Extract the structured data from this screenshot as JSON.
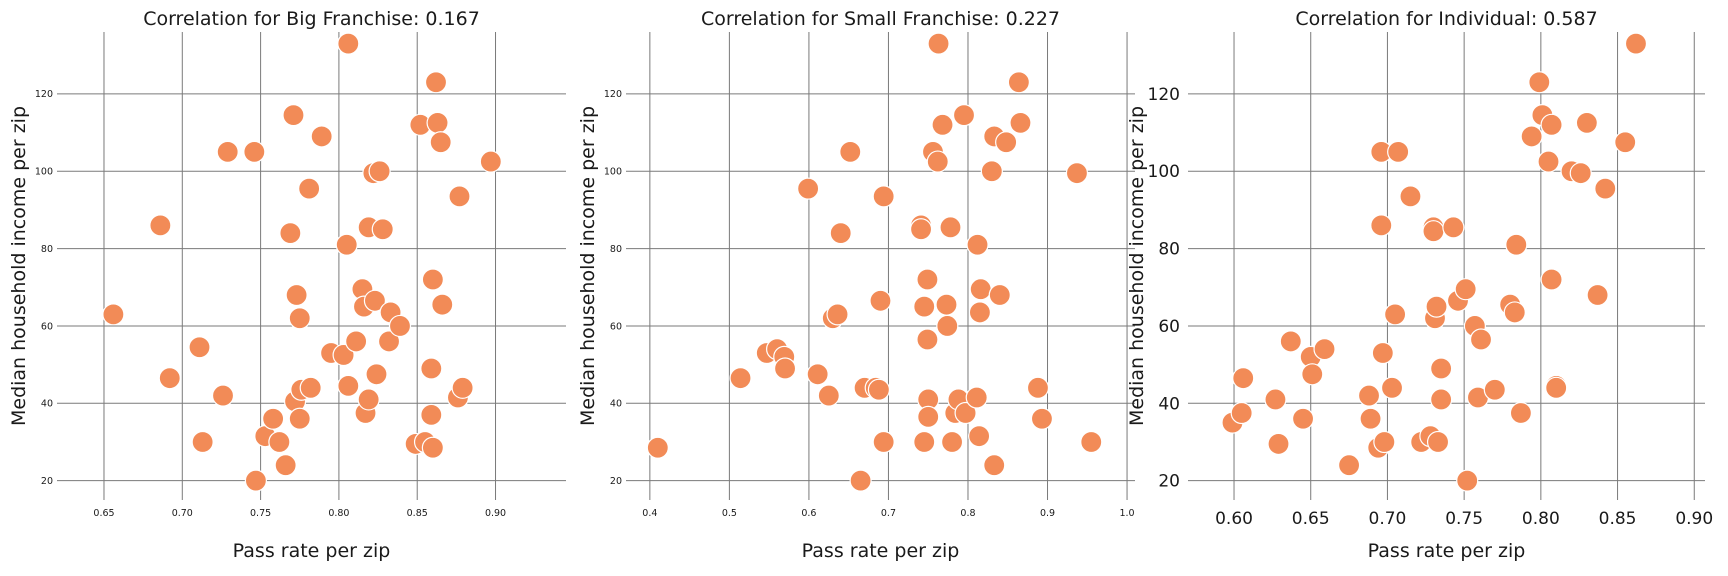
{
  "figure": {
    "panels": [
      {
        "title": "Correlation for Big Franchise: 0.167",
        "xlabel": "Pass rate per zip",
        "ylabel": "Median household income per zip"
      },
      {
        "title": "Correlation for Small Franchise: 0.227",
        "xlabel": "Pass rate per zip",
        "ylabel": "Median household income per zip"
      },
      {
        "title": "Correlation for Individual: 0.587",
        "xlabel": "Pass rate per zip",
        "ylabel": "Median household income per zip"
      }
    ]
  },
  "chart_data": [
    {
      "type": "scatter",
      "title": "Correlation for Big Franchise: 0.167",
      "xlabel": "Pass rate per zip",
      "ylabel": "Median household income per zip",
      "xlim": [
        0.62,
        0.945
      ],
      "ylim": [
        15,
        136
      ],
      "xticks": [
        0.65,
        0.7,
        0.75,
        0.8,
        0.85,
        0.9
      ],
      "xtick_labels": [
        "0.65",
        "0.70",
        "0.75",
        "0.80",
        "0.85",
        "0.90"
      ],
      "yticks": [
        20,
        40,
        60,
        80,
        100,
        120
      ],
      "ytick_labels": [
        "20",
        "40",
        "60",
        "80",
        "100",
        "120"
      ],
      "grid": true,
      "color": "#f28b57",
      "points": [
        [
          0.656,
          63
        ],
        [
          0.686,
          86
        ],
        [
          0.692,
          46.5
        ],
        [
          0.711,
          54.5
        ],
        [
          0.713,
          30
        ],
        [
          0.726,
          42
        ],
        [
          0.729,
          105
        ],
        [
          0.746,
          105
        ],
        [
          0.747,
          20
        ],
        [
          0.753,
          31.5
        ],
        [
          0.758,
          36
        ],
        [
          0.762,
          30
        ],
        [
          0.766,
          24
        ],
        [
          0.769,
          84
        ],
        [
          0.771,
          114.5
        ],
        [
          0.772,
          40.5
        ],
        [
          0.773,
          68
        ],
        [
          0.775,
          36
        ],
        [
          0.775,
          62
        ],
        [
          0.776,
          43.5
        ],
        [
          0.781,
          95.5
        ],
        [
          0.782,
          44
        ],
        [
          0.789,
          109
        ],
        [
          0.795,
          53
        ],
        [
          0.803,
          52.5
        ],
        [
          0.805,
          81
        ],
        [
          0.806,
          133
        ],
        [
          0.806,
          44.5
        ],
        [
          0.811,
          56
        ],
        [
          0.815,
          69.5
        ],
        [
          0.816,
          65
        ],
        [
          0.817,
          37.5
        ],
        [
          0.819,
          85.5
        ],
        [
          0.819,
          41
        ],
        [
          0.822,
          99.5
        ],
        [
          0.823,
          66.5
        ],
        [
          0.824,
          47.5
        ],
        [
          0.826,
          100
        ],
        [
          0.828,
          85
        ],
        [
          0.832,
          56
        ],
        [
          0.833,
          63.5
        ],
        [
          0.839,
          60
        ],
        [
          0.849,
          29.5
        ],
        [
          0.852,
          112
        ],
        [
          0.855,
          30
        ],
        [
          0.859,
          49
        ],
        [
          0.859,
          37
        ],
        [
          0.86,
          72
        ],
        [
          0.86,
          28.5
        ],
        [
          0.862,
          123
        ],
        [
          0.863,
          112.5
        ],
        [
          0.865,
          107.5
        ],
        [
          0.866,
          65.5
        ],
        [
          0.876,
          41.5
        ],
        [
          0.877,
          93.5
        ],
        [
          0.879,
          44
        ],
        [
          0.897,
          102.5
        ]
      ]
    },
    {
      "type": "scatter",
      "title": "Correlation for Small Franchise: 0.227",
      "xlabel": "Pass rate per zip",
      "ylabel": "Median household income per zip",
      "xlim": [
        0.37,
        1.01
      ],
      "ylim": [
        15,
        136
      ],
      "xticks": [
        0.4,
        0.5,
        0.6,
        0.7,
        0.8,
        0.9,
        1.0
      ],
      "xtick_labels": [
        "0.4",
        "0.5",
        "0.6",
        "0.7",
        "0.8",
        "0.9",
        "1.0"
      ],
      "yticks": [
        20,
        40,
        60,
        80,
        100,
        120
      ],
      "ytick_labels": [
        "20",
        "40",
        "60",
        "80",
        "100",
        "120"
      ],
      "grid": true,
      "color": "#f28b57",
      "points": [
        [
          0.41,
          28.5
        ],
        [
          0.514,
          46.5
        ],
        [
          0.547,
          53
        ],
        [
          0.56,
          54
        ],
        [
          0.569,
          52
        ],
        [
          0.57,
          49
        ],
        [
          0.599,
          95.5
        ],
        [
          0.611,
          47.5
        ],
        [
          0.625,
          42
        ],
        [
          0.63,
          62
        ],
        [
          0.636,
          63
        ],
        [
          0.64,
          84
        ],
        [
          0.652,
          105
        ],
        [
          0.665,
          20
        ],
        [
          0.67,
          44
        ],
        [
          0.684,
          44
        ],
        [
          0.688,
          43.5
        ],
        [
          0.69,
          66.5
        ],
        [
          0.694,
          93.5
        ],
        [
          0.694,
          30
        ],
        [
          0.741,
          86
        ],
        [
          0.741,
          85
        ],
        [
          0.745,
          65
        ],
        [
          0.745,
          30
        ],
        [
          0.749,
          72
        ],
        [
          0.749,
          56.5
        ],
        [
          0.75,
          41
        ],
        [
          0.75,
          36.5
        ],
        [
          0.756,
          105
        ],
        [
          0.762,
          102.5
        ],
        [
          0.763,
          133
        ],
        [
          0.768,
          112
        ],
        [
          0.773,
          65.5
        ],
        [
          0.774,
          60
        ],
        [
          0.778,
          85.5
        ],
        [
          0.78,
          30
        ],
        [
          0.784,
          37.5
        ],
        [
          0.788,
          41
        ],
        [
          0.795,
          114.5
        ],
        [
          0.797,
          37.5
        ],
        [
          0.811,
          41.5
        ],
        [
          0.812,
          81
        ],
        [
          0.814,
          31.5
        ],
        [
          0.815,
          63.5
        ],
        [
          0.816,
          69.5
        ],
        [
          0.83,
          100
        ],
        [
          0.833,
          109
        ],
        [
          0.833,
          24
        ],
        [
          0.84,
          68
        ],
        [
          0.848,
          107.5
        ],
        [
          0.864,
          123
        ],
        [
          0.866,
          112.5
        ],
        [
          0.888,
          44
        ],
        [
          0.893,
          36
        ],
        [
          0.937,
          99.5
        ],
        [
          0.955,
          30
        ]
      ]
    },
    {
      "type": "scatter",
      "title": "Correlation for Individual: 0.587",
      "xlabel": "Pass rate per zip",
      "ylabel": "Median household income per zip",
      "xlim": [
        0.57,
        0.907
      ],
      "ylim": [
        15,
        136
      ],
      "xticks": [
        0.6,
        0.65,
        0.7,
        0.75,
        0.8,
        0.85,
        0.9
      ],
      "xtick_labels": [
        "0.60",
        "0.65",
        "0.70",
        "0.75",
        "0.80",
        "0.85",
        "0.90"
      ],
      "yticks": [
        20,
        40,
        60,
        80,
        100,
        120
      ],
      "ytick_labels": [
        "20",
        "40",
        "60",
        "80",
        "100",
        "120"
      ],
      "grid": true,
      "color": "#f28b57",
      "points": [
        [
          0.599,
          35
        ],
        [
          0.605,
          37.5
        ],
        [
          0.606,
          46.5
        ],
        [
          0.627,
          41
        ],
        [
          0.629,
          29.5
        ],
        [
          0.637,
          56
        ],
        [
          0.645,
          36
        ],
        [
          0.65,
          52
        ],
        [
          0.651,
          47.5
        ],
        [
          0.659,
          54
        ],
        [
          0.675,
          24
        ],
        [
          0.688,
          42
        ],
        [
          0.689,
          36
        ],
        [
          0.694,
          28.5
        ],
        [
          0.696,
          86
        ],
        [
          0.696,
          105
        ],
        [
          0.697,
          53
        ],
        [
          0.698,
          30
        ],
        [
          0.703,
          44
        ],
        [
          0.705,
          63
        ],
        [
          0.707,
          105
        ],
        [
          0.715,
          93.5
        ],
        [
          0.722,
          30
        ],
        [
          0.728,
          31.5
        ],
        [
          0.73,
          85.5
        ],
        [
          0.73,
          84.5
        ],
        [
          0.731,
          62
        ],
        [
          0.732,
          65
        ],
        [
          0.733,
          30
        ],
        [
          0.735,
          49
        ],
        [
          0.735,
          41
        ],
        [
          0.743,
          85.5
        ],
        [
          0.746,
          66.5
        ],
        [
          0.751,
          69.5
        ],
        [
          0.752,
          20
        ],
        [
          0.757,
          60
        ],
        [
          0.759,
          41.5
        ],
        [
          0.761,
          56.5
        ],
        [
          0.77,
          43.5
        ],
        [
          0.78,
          65.5
        ],
        [
          0.783,
          63.5
        ],
        [
          0.784,
          81
        ],
        [
          0.787,
          37.5
        ],
        [
          0.794,
          109
        ],
        [
          0.799,
          123
        ],
        [
          0.801,
          114.5
        ],
        [
          0.805,
          102.5
        ],
        [
          0.807,
          112
        ],
        [
          0.807,
          72
        ],
        [
          0.81,
          44.5
        ],
        [
          0.81,
          44
        ],
        [
          0.82,
          100
        ],
        [
          0.826,
          99.5
        ],
        [
          0.83,
          112.5
        ],
        [
          0.837,
          68
        ],
        [
          0.842,
          95.5
        ],
        [
          0.855,
          107.5
        ],
        [
          0.862,
          133
        ]
      ]
    }
  ]
}
